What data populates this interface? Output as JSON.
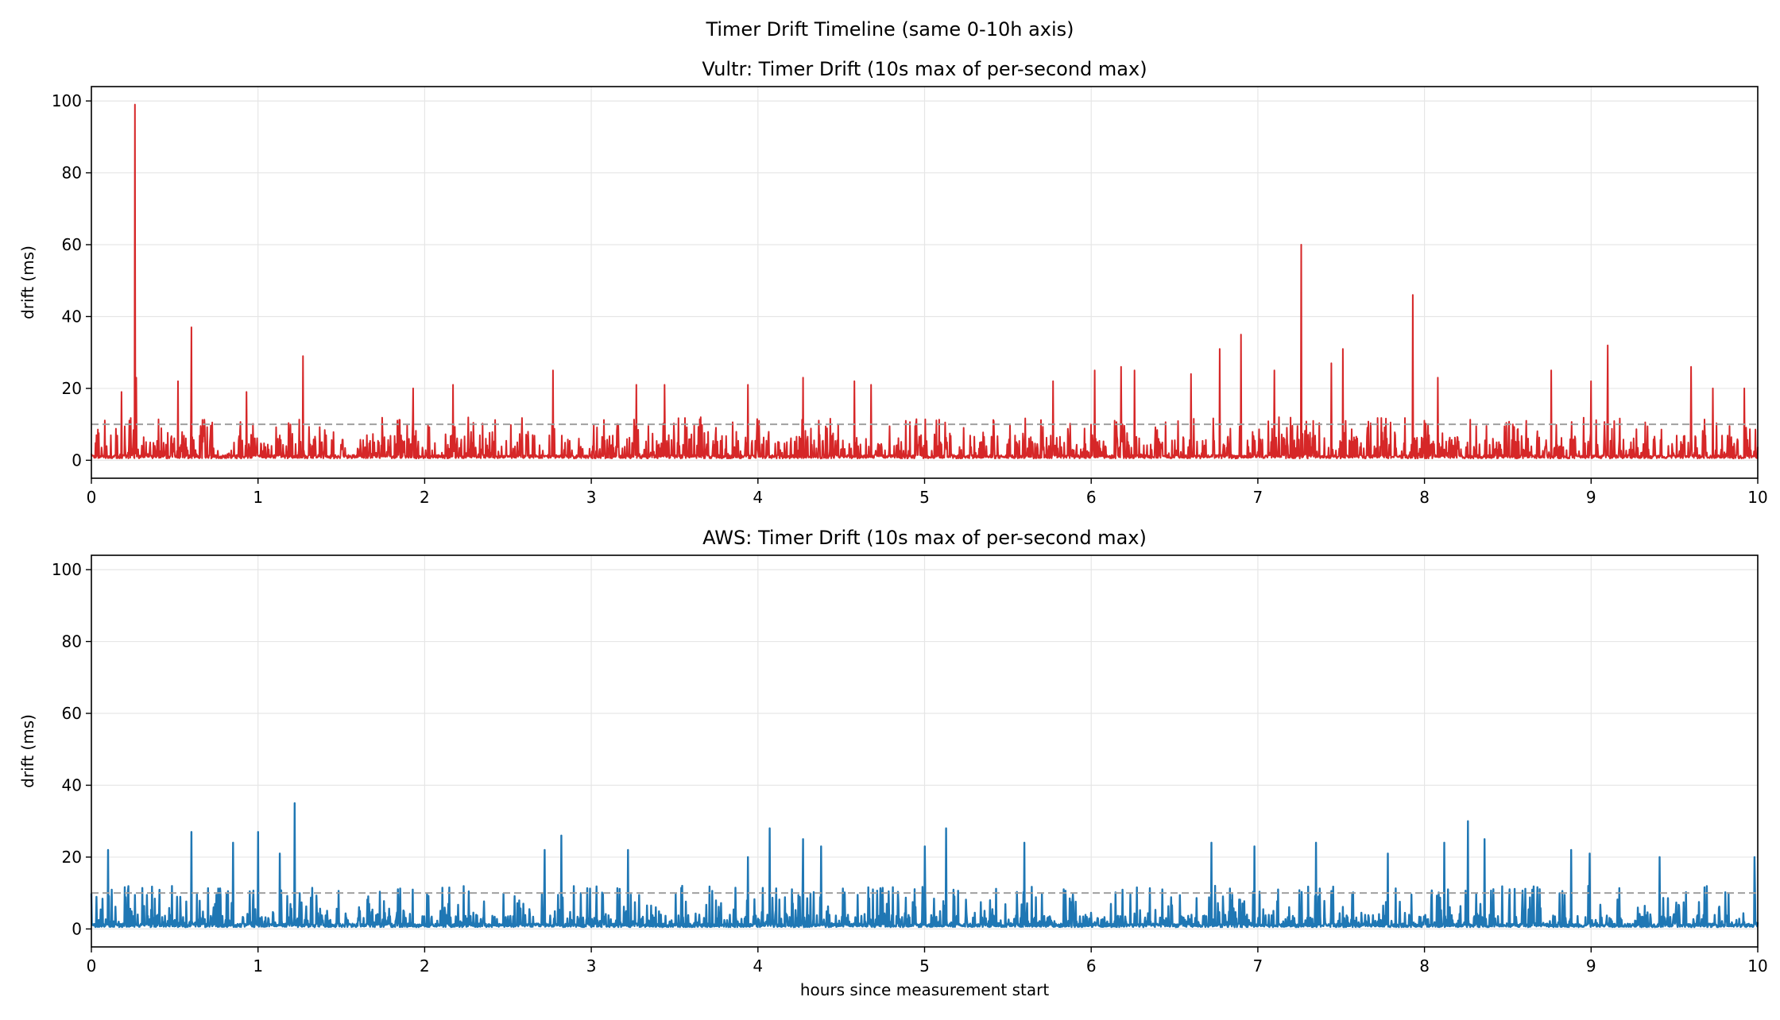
{
  "figure_title": "Timer Drift Timeline (same 0-10h axis)",
  "chart_data": [
    {
      "type": "line",
      "title": "Vultr: Timer Drift (10s max of per-second max)",
      "xlabel": "",
      "ylabel": "drift (ms)",
      "xlim": [
        0,
        10
      ],
      "ylim": [
        -5,
        104
      ],
      "xticks": [
        "0",
        "1",
        "2",
        "3",
        "4",
        "5",
        "6",
        "7",
        "8",
        "9",
        "10"
      ],
      "yticks": [
        "0",
        "20",
        "40",
        "60",
        "80",
        "100"
      ],
      "grid": true,
      "reference_line": {
        "y": 10,
        "style": "dashed",
        "color": "#a0a0a0"
      },
      "color": "#d62728",
      "baseline_typical_range": [
        0,
        12
      ],
      "notable_peaks": [
        [
          0.18,
          19
        ],
        [
          0.26,
          99
        ],
        [
          0.27,
          23
        ],
        [
          0.52,
          22
        ],
        [
          0.6,
          37
        ],
        [
          0.93,
          19
        ],
        [
          1.27,
          29
        ],
        [
          1.93,
          20
        ],
        [
          2.17,
          21
        ],
        [
          2.77,
          25
        ],
        [
          3.27,
          21
        ],
        [
          3.44,
          21
        ],
        [
          3.94,
          21
        ],
        [
          4.27,
          23
        ],
        [
          4.58,
          22
        ],
        [
          4.68,
          21
        ],
        [
          5.77,
          22
        ],
        [
          6.02,
          25
        ],
        [
          6.18,
          26
        ],
        [
          6.26,
          25
        ],
        [
          6.6,
          24
        ],
        [
          6.77,
          31
        ],
        [
          6.9,
          35
        ],
        [
          7.1,
          25
        ],
        [
          7.26,
          60
        ],
        [
          7.44,
          27
        ],
        [
          7.51,
          31
        ],
        [
          7.93,
          46
        ],
        [
          8.08,
          23
        ],
        [
          8.76,
          25
        ],
        [
          9.0,
          22
        ],
        [
          9.1,
          32
        ],
        [
          9.6,
          26
        ],
        [
          9.73,
          20
        ],
        [
          9.92,
          20
        ]
      ]
    },
    {
      "type": "line",
      "title": "AWS: Timer Drift (10s max of per-second max)",
      "xlabel": "hours since measurement start",
      "ylabel": "drift (ms)",
      "xlim": [
        0,
        10
      ],
      "ylim": [
        -5,
        104
      ],
      "xticks": [
        "0",
        "1",
        "2",
        "3",
        "4",
        "5",
        "6",
        "7",
        "8",
        "9",
        "10"
      ],
      "yticks": [
        "0",
        "20",
        "40",
        "60",
        "80",
        "100"
      ],
      "grid": true,
      "reference_line": {
        "y": 10,
        "style": "dashed",
        "color": "#a0a0a0"
      },
      "color": "#1f77b4",
      "baseline_typical_range": [
        0,
        12
      ],
      "notable_peaks": [
        [
          0.1,
          22
        ],
        [
          0.6,
          27
        ],
        [
          0.85,
          24
        ],
        [
          1.0,
          27
        ],
        [
          1.13,
          21
        ],
        [
          1.22,
          35
        ],
        [
          2.72,
          22
        ],
        [
          2.82,
          26
        ],
        [
          3.22,
          22
        ],
        [
          3.94,
          20
        ],
        [
          4.07,
          28
        ],
        [
          4.27,
          25
        ],
        [
          4.38,
          23
        ],
        [
          5.0,
          23
        ],
        [
          5.13,
          28
        ],
        [
          5.6,
          24
        ],
        [
          6.72,
          24
        ],
        [
          6.98,
          23
        ],
        [
          7.35,
          24
        ],
        [
          7.78,
          21
        ],
        [
          8.12,
          24
        ],
        [
          8.26,
          30
        ],
        [
          8.36,
          25
        ],
        [
          8.88,
          22
        ],
        [
          8.99,
          21
        ],
        [
          9.41,
          20
        ],
        [
          9.98,
          20
        ]
      ]
    }
  ]
}
